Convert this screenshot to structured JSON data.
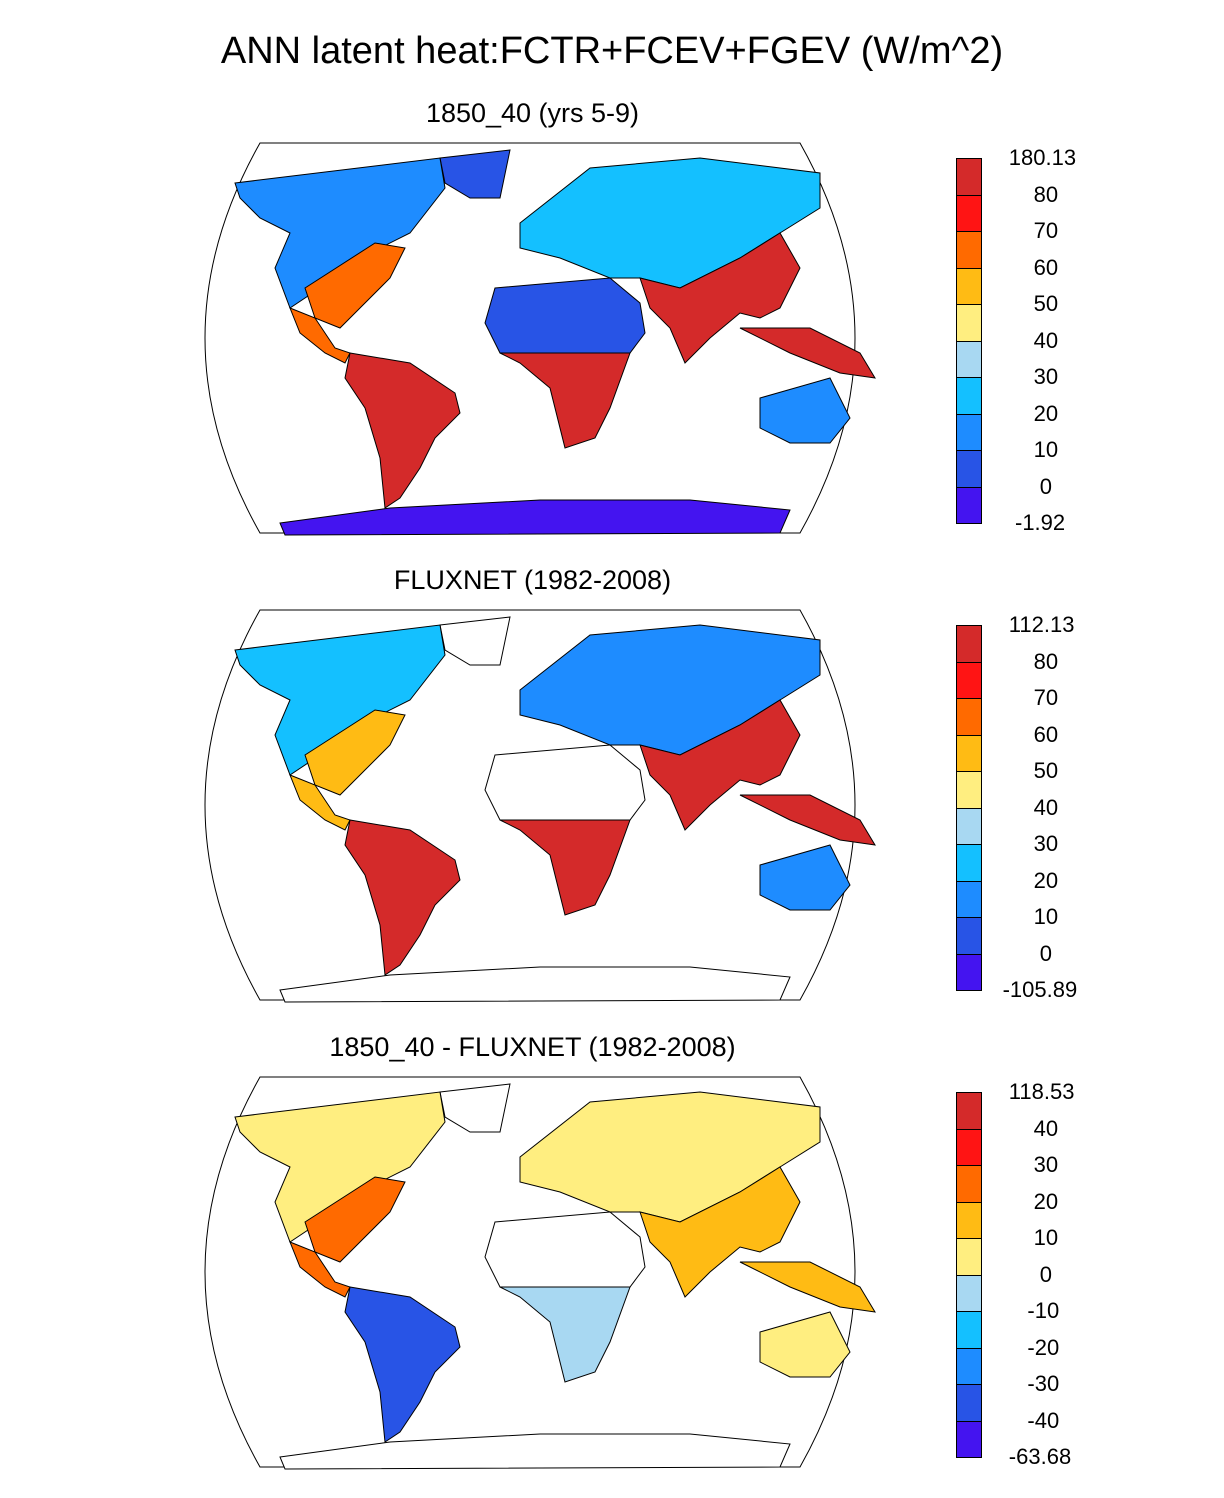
{
  "title": "ANN latent heat:FCTR+FCEV+FGEV (W/m^2)",
  "panels": [
    {
      "title": "1850_40 (yrs 5-9)",
      "colorbar": {
        "labels": [
          "180.13",
          "80",
          "70",
          "60",
          "50",
          "40",
          "30",
          "20",
          "10",
          "0",
          "-1.92"
        ],
        "colors": [
          "#d42a2a",
          "#ff1414",
          "#ff6a00",
          "#ffbb14",
          "#ffee80",
          "#a8d8f2",
          "#14c0ff",
          "#1e8cff",
          "#2854e6",
          "#4414f0"
        ]
      }
    },
    {
      "title": "FLUXNET (1982-2008)",
      "colorbar": {
        "labels": [
          "112.13",
          "80",
          "70",
          "60",
          "50",
          "40",
          "30",
          "20",
          "10",
          "0",
          "-105.89"
        ],
        "colors": [
          "#d42a2a",
          "#ff1414",
          "#ff6a00",
          "#ffbb14",
          "#ffee80",
          "#a8d8f2",
          "#14c0ff",
          "#1e8cff",
          "#2854e6",
          "#4414f0"
        ]
      }
    },
    {
      "title": "1850_40 - FLUXNET (1982-2008)",
      "colorbar": {
        "labels": [
          "118.53",
          "40",
          "30",
          "20",
          "10",
          "0",
          "-10",
          "-20",
          "-30",
          "-40",
          "-63.68"
        ],
        "colors": [
          "#d42a2a",
          "#ff1414",
          "#ff6a00",
          "#ffbb14",
          "#ffee80",
          "#a8d8f2",
          "#14c0ff",
          "#1e8cff",
          "#2854e6",
          "#4414f0"
        ]
      }
    }
  ],
  "map_colors": {
    "panel0": {
      "north_america": "#1e8cff",
      "north_america_east": "#ff6a00",
      "south_america": "#d42a2a",
      "africa_north": "#2854e6",
      "africa_central": "#d42a2a",
      "eurasia": "#14c0ff",
      "south_asia": "#d42a2a",
      "australia": "#1e8cff",
      "antarctica": "#4414f0",
      "greenland": "#2854e6"
    },
    "panel1": {
      "north_america": "#14c0ff",
      "north_america_east": "#ffbb14",
      "south_america": "#d42a2a",
      "africa_north": "#ffffff",
      "africa_central": "#d42a2a",
      "eurasia": "#1e8cff",
      "south_asia": "#d42a2a",
      "australia": "#1e8cff",
      "antarctica": "#ffffff",
      "greenland": "#ffffff"
    },
    "panel2": {
      "north_america": "#ffee80",
      "north_america_east": "#ff6a00",
      "south_america": "#2854e6",
      "africa_north": "#ffffff",
      "africa_central": "#a8d8f2",
      "eurasia": "#ffee80",
      "south_asia": "#ffbb14",
      "australia": "#ffee80",
      "antarctica": "#ffffff",
      "greenland": "#ffffff"
    }
  }
}
